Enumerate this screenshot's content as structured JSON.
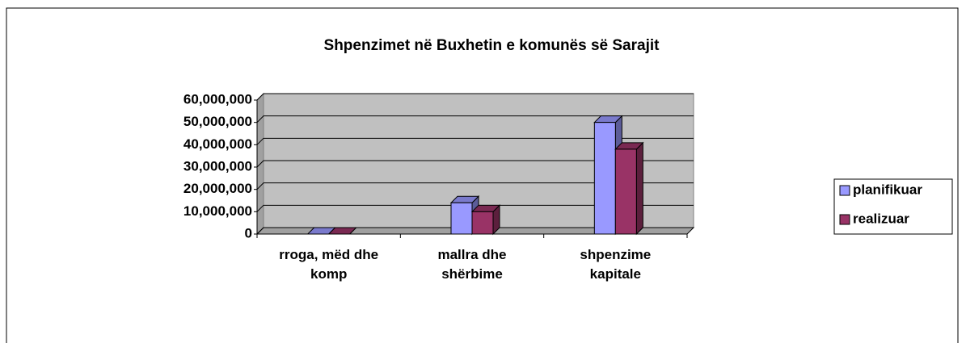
{
  "chart_data": {
    "type": "bar3d",
    "title": "Shpenzimet në Buxhetin e komunës së Sarajit",
    "categories": [
      "rroga, mëd dhe komp",
      "mallra dhe shërbime",
      "shpenzime kapitale"
    ],
    "series": [
      {
        "name": "planifikuar",
        "color": "#9999ff",
        "values": [
          0,
          14000000,
          50000000
        ]
      },
      {
        "name": "realizuar",
        "color": "#993366",
        "values": [
          0,
          10000000,
          38000000
        ]
      }
    ],
    "ylim": [
      0,
      60000000
    ],
    "yticks": [
      0,
      {
        "value": 10000000,
        "label": "10,000,000"
      },
      {
        "value": 20000000,
        "label": "20,000,000"
      },
      {
        "value": 30000000,
        "label": "30,000,000"
      },
      {
        "value": 40000000,
        "label": "40,000,000"
      },
      {
        "value": 50000000,
        "label": "50,000,000"
      },
      {
        "value": 60000000,
        "label": "60,000,000"
      }
    ],
    "grid": true,
    "legend": "right"
  }
}
